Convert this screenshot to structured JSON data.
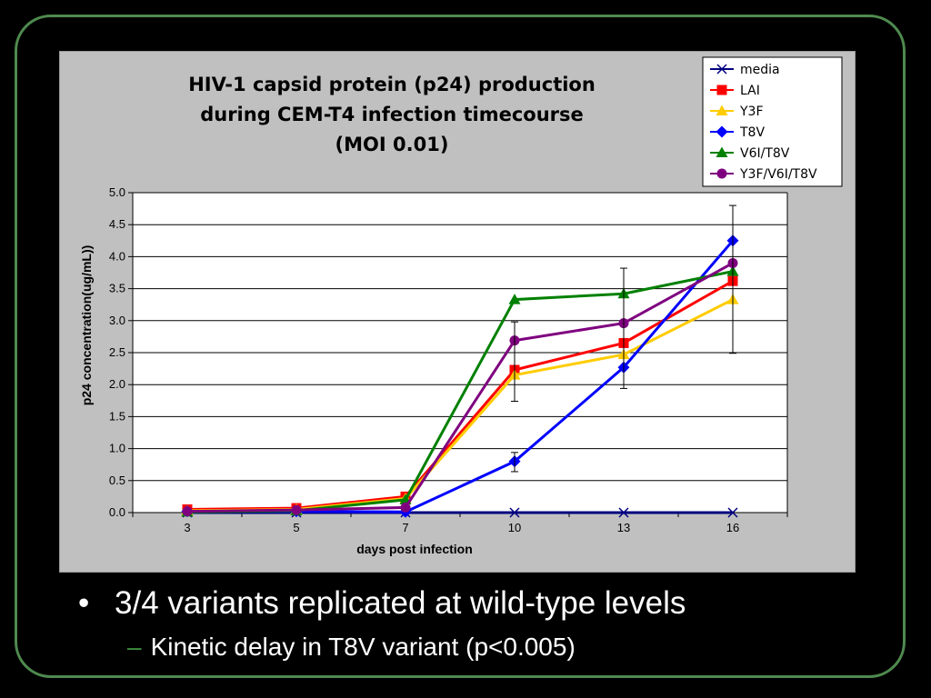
{
  "slide": {
    "bullet_main": "3/4 variants replicated at wild-type levels",
    "bullet_sub": "Kinetic delay in T8V variant (p<0.005)",
    "sub_dash": "–",
    "bullet_mark": "•"
  },
  "chart_data": {
    "type": "line",
    "title_lines": [
      "HIV-1 capsid protein (p24) production",
      "during CEM-T4 infection timecourse",
      "(MOI 0.01)"
    ],
    "xlabel": "days post infection",
    "ylabel": "p24 concentration(ug/mL))",
    "categories": [
      "3",
      "5",
      "7",
      "10",
      "13",
      "16"
    ],
    "ylim": [
      0,
      5
    ],
    "yticks": [
      "0.0",
      "0.5",
      "1.0",
      "1.5",
      "2.0",
      "2.5",
      "3.0",
      "3.5",
      "4.0",
      "4.5",
      "5.0"
    ],
    "grid": true,
    "legend_position": "top-right",
    "series": [
      {
        "name": "media",
        "color": "#00007f",
        "marker": "x",
        "values": [
          0.0,
          0.0,
          0.0,
          0.0,
          0.0,
          0.0
        ]
      },
      {
        "name": "LAI",
        "color": "#ff0000",
        "marker": "square",
        "values": [
          0.05,
          0.07,
          0.25,
          2.23,
          2.65,
          3.62
        ]
      },
      {
        "name": "Y3F",
        "color": "#ffcc00",
        "marker": "triangle",
        "values": [
          0.03,
          0.05,
          0.22,
          2.15,
          2.47,
          3.33
        ]
      },
      {
        "name": "T8V",
        "color": "#0000ff",
        "marker": "diamond",
        "values": [
          0.02,
          0.02,
          0.01,
          0.8,
          2.27,
          4.25
        ]
      },
      {
        "name": "V6I/T8V",
        "color": "#008000",
        "marker": "triangle",
        "values": [
          0.01,
          0.03,
          0.2,
          3.33,
          3.42,
          3.77
        ]
      },
      {
        "name": "Y3F/V6I/T8V",
        "color": "#7f007f",
        "marker": "circle",
        "values": [
          0.02,
          0.04,
          0.08,
          2.69,
          2.96,
          3.9
        ]
      }
    ],
    "error_bars": [
      {
        "category": "10",
        "low": 1.74,
        "high": 2.98
      },
      {
        "category": "10",
        "low": 0.64,
        "high": 0.94
      },
      {
        "category": "13",
        "low": 1.94,
        "high": 3.82
      },
      {
        "category": "16",
        "low": 2.49,
        "high": 4.8
      }
    ]
  }
}
